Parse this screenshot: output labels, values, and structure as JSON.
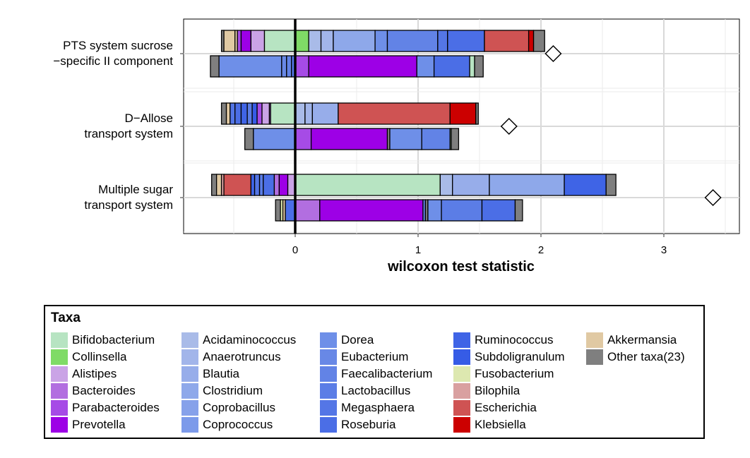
{
  "chart_data": {
    "type": "bar",
    "orientation": "horizontal",
    "stacked": true,
    "xlabel": "wilcoxon test statistic",
    "xlim": [
      -0.92,
      3.7
    ],
    "xticks": [
      0,
      1,
      2,
      3
    ],
    "grid": true,
    "legend_title": "Taxa",
    "legend_position": "bottom",
    "groups": [
      {
        "label_lines": [
          "PTS system sucrose",
          "−specific II component"
        ],
        "diamond": 2.1,
        "bars": [
          {
            "neg": [
              [
                "Other taxa(23)",
                0.02
              ],
              [
                "Akkermansia",
                0.09
              ],
              [
                "Akkermansia",
                0.02
              ],
              [
                "Parabacteroides",
                0.03
              ],
              [
                "Prevotella",
                0.08
              ],
              [
                "Alistipes",
                0.11
              ],
              [
                "Bifidobacterium",
                0.25
              ]
            ],
            "pos": [
              [
                "Collinsella",
                0.11
              ],
              [
                "Acidaminococcus",
                0.1
              ],
              [
                "Anaerotruncus",
                0.1
              ],
              [
                "Clostridium",
                0.34
              ],
              [
                "Dorea",
                0.1
              ],
              [
                "Faecalibacterium",
                0.41
              ],
              [
                "Megasphaera",
                0.08
              ],
              [
                "Roseburia",
                0.3
              ],
              [
                "Escherichia",
                0.36
              ],
              [
                "Klebsiella",
                0.04
              ],
              [
                "Other taxa(23)",
                0.09
              ]
            ]
          },
          {
            "neg": [
              [
                "Other taxa(23)",
                0.07
              ],
              [
                "Dorea",
                0.51
              ],
              [
                "Eubacterium",
                0.04
              ],
              [
                "Faecalibacterium",
                0.04
              ],
              [
                "Megasphaera",
                0.03
              ]
            ],
            "pos": [
              [
                "Parabacteroides",
                0.11
              ],
              [
                "Prevotella",
                0.88
              ],
              [
                "Dorea",
                0.14
              ],
              [
                "Roseburia",
                0.29
              ],
              [
                "Bifidobacterium",
                0.04
              ],
              [
                "Other taxa(23)",
                0.07
              ]
            ]
          }
        ]
      },
      {
        "label_lines": [
          "D−Allose",
          "transport system"
        ],
        "diamond": 1.74,
        "bars": [
          {
            "neg": [
              [
                "Other taxa(23)",
                0.04
              ],
              [
                "Akkermansia",
                0.03
              ],
              [
                "Megasphaera",
                0.04
              ],
              [
                "Roseburia",
                0.05
              ],
              [
                "Ruminococcus",
                0.05
              ],
              [
                "Lactobacillus",
                0.04
              ],
              [
                "Subdoligranulum",
                0.04
              ],
              [
                "Parabacteroides",
                0.04
              ],
              [
                "Alistipes",
                0.06
              ],
              [
                "Bacteroides",
                0.01
              ],
              [
                "Bifidobacterium",
                0.2
              ]
            ],
            "pos": [
              [
                "Acidaminococcus",
                0.08
              ],
              [
                "Anaerotruncus",
                0.06
              ],
              [
                "Blautia",
                0.21
              ],
              [
                "Escherichia",
                0.91
              ],
              [
                "Klebsiella",
                0.21
              ],
              [
                "Other taxa(23)",
                0.02
              ]
            ]
          },
          {
            "neg": [
              [
                "Other taxa(23)",
                0.07
              ],
              [
                "Dorea",
                0.34
              ]
            ],
            "pos": [
              [
                "Parabacteroides",
                0.13
              ],
              [
                "Prevotella",
                0.62
              ],
              [
                "Other taxa(23)",
                0.02
              ],
              [
                "Dorea",
                0.26
              ],
              [
                "Faecalibacterium",
                0.23
              ],
              [
                "Bifidobacterium",
                0.01
              ],
              [
                "Other taxa(23)",
                0.06
              ]
            ]
          }
        ]
      },
      {
        "label_lines": [
          "Multiple sugar",
          "transport system"
        ],
        "diamond": 3.4,
        "bars": [
          {
            "neg": [
              [
                "Other taxa(23)",
                0.04
              ],
              [
                "Akkermansia",
                0.04
              ],
              [
                "Bilophila",
                0.02
              ],
              [
                "Escherichia",
                0.22
              ],
              [
                "Ruminococcus",
                0.03
              ],
              [
                "Megasphaera",
                0.04
              ],
              [
                "Lactobacillus",
                0.03
              ],
              [
                "Roseburia",
                0.09
              ],
              [
                "Bacteroides",
                0.04
              ],
              [
                "Prevotella",
                0.07
              ],
              [
                "Alistipes",
                0.06
              ]
            ],
            "pos": [
              [
                "Bifidobacterium",
                1.18
              ],
              [
                "Acidaminococcus",
                0.1
              ],
              [
                "Blautia",
                0.3
              ],
              [
                "Clostridium",
                0.61
              ],
              [
                "Ruminococcus",
                0.34
              ],
              [
                "Other taxa(23)",
                0.08
              ]
            ]
          },
          {
            "neg": [
              [
                "Other taxa(23)",
                0.04
              ],
              [
                "Fusobacterium",
                0.02
              ],
              [
                "Akkermansia",
                0.02
              ],
              [
                "Roseburia",
                0.08
              ]
            ],
            "pos": [
              [
                "Bacteroides",
                0.2
              ],
              [
                "Prevotella",
                0.84
              ],
              [
                "Faecalibacterium",
                0.02
              ],
              [
                "Other taxa(23)",
                0.02
              ],
              [
                "Dorea",
                0.11
              ],
              [
                "Lactobacillus",
                0.33
              ],
              [
                "Roseburia",
                0.27
              ],
              [
                "Other taxa(23)",
                0.06
              ]
            ]
          }
        ]
      }
    ]
  },
  "legend": {
    "title": "Taxa",
    "columns": [
      [
        {
          "label": "Bifidobacterium",
          "color": "#b7e4c2"
        },
        {
          "label": "Collinsella",
          "color": "#7fdb66"
        },
        {
          "label": "Alistipes",
          "color": "#caa3e6"
        },
        {
          "label": "Bacteroides",
          "color": "#b26ee0"
        },
        {
          "label": "Parabacteroides",
          "color": "#a64be6"
        },
        {
          "label": "Prevotella",
          "color": "#9d00e6"
        }
      ],
      [
        {
          "label": "Acidaminococcus",
          "color": "#a9bbe8"
        },
        {
          "label": "Anaerotruncus",
          "color": "#a2b5ea"
        },
        {
          "label": "Blautia",
          "color": "#97adea"
        },
        {
          "label": "Clostridium",
          "color": "#8ea8ea"
        },
        {
          "label": "Coprobacillus",
          "color": "#86a1ea"
        },
        {
          "label": "Coprococcus",
          "color": "#7c9aea"
        }
      ],
      [
        {
          "label": "Dorea",
          "color": "#6e8fe8"
        },
        {
          "label": "Eubacterium",
          "color": "#6888e6"
        },
        {
          "label": "Faecalibacterium",
          "color": "#6283e6"
        },
        {
          "label": "Lactobacillus",
          "color": "#5b7de6"
        },
        {
          "label": "Megasphaera",
          "color": "#5476e6"
        },
        {
          "label": "Roseburia",
          "color": "#4b6ee6"
        }
      ],
      [
        {
          "label": "Ruminococcus",
          "color": "#3f64e6"
        },
        {
          "label": "Subdoligranulum",
          "color": "#365ce6"
        },
        {
          "label": "Fusobacterium",
          "color": "#dde8b0"
        },
        {
          "label": "Bilophila",
          "color": "#d9a0a0"
        },
        {
          "label": "Escherichia",
          "color": "#cf5353"
        },
        {
          "label": "Klebsiella",
          "color": "#cc0000"
        }
      ],
      [
        {
          "label": "Akkermansia",
          "color": "#e0c9a3"
        },
        {
          "label": "Other taxa(23)",
          "color": "#7f7f7f"
        }
      ]
    ]
  }
}
